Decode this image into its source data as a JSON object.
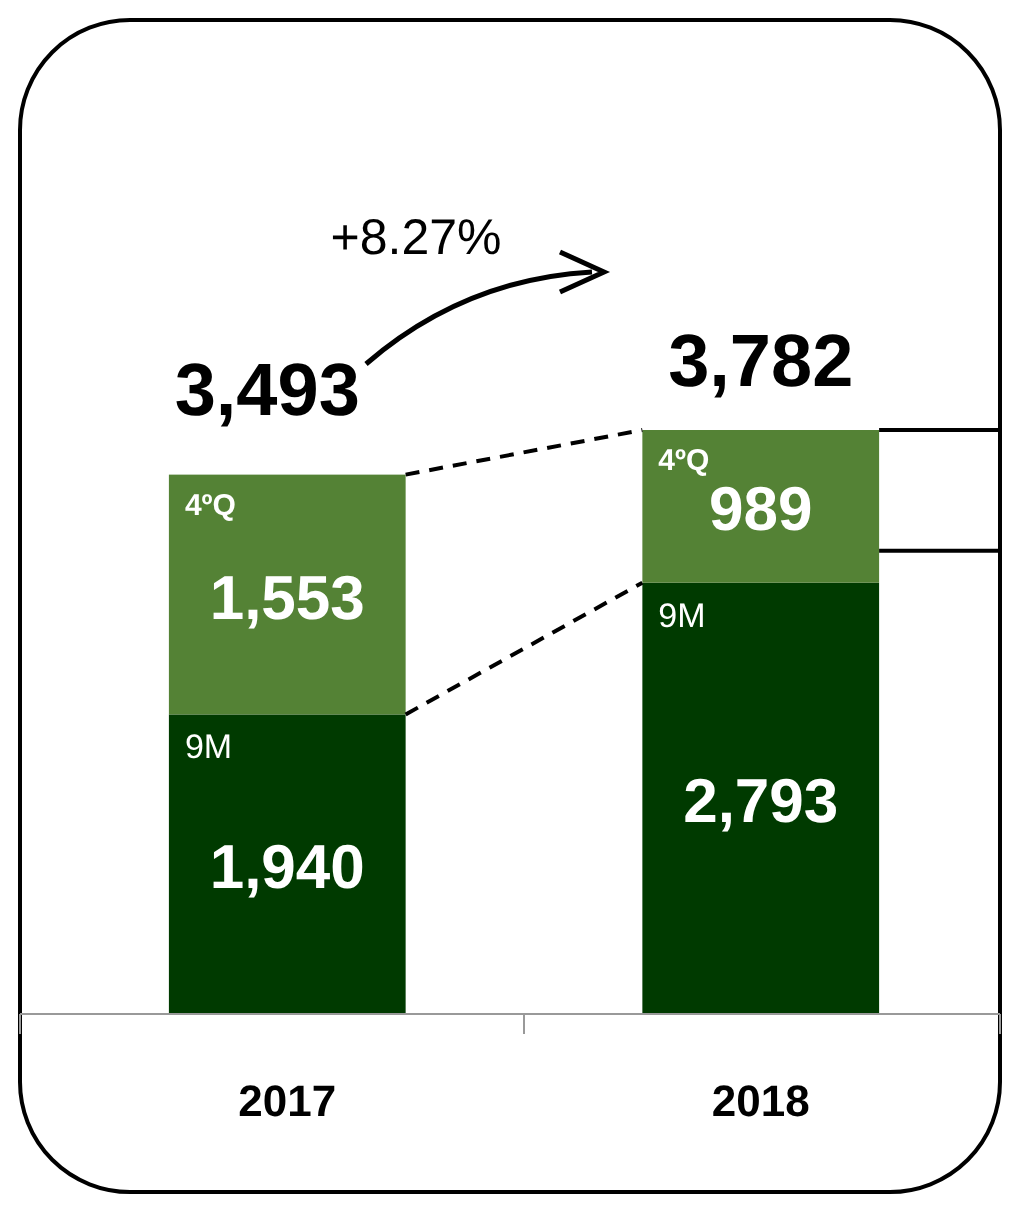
{
  "chart_data": {
    "type": "bar",
    "stacked": true,
    "categories": [
      "2017",
      "2018"
    ],
    "series": [
      {
        "name": "9M",
        "color": "#003a00",
        "values": [
          1940,
          2793
        ],
        "value_labels": [
          "1,940",
          "2,793"
        ]
      },
      {
        "name": "4ºQ",
        "color": "#548235",
        "values": [
          1553,
          989
        ],
        "value_labels": [
          "1,553",
          "989"
        ]
      }
    ],
    "totals": [
      "3,493",
      "3,782"
    ],
    "annotations": [
      "+8.27%"
    ]
  }
}
